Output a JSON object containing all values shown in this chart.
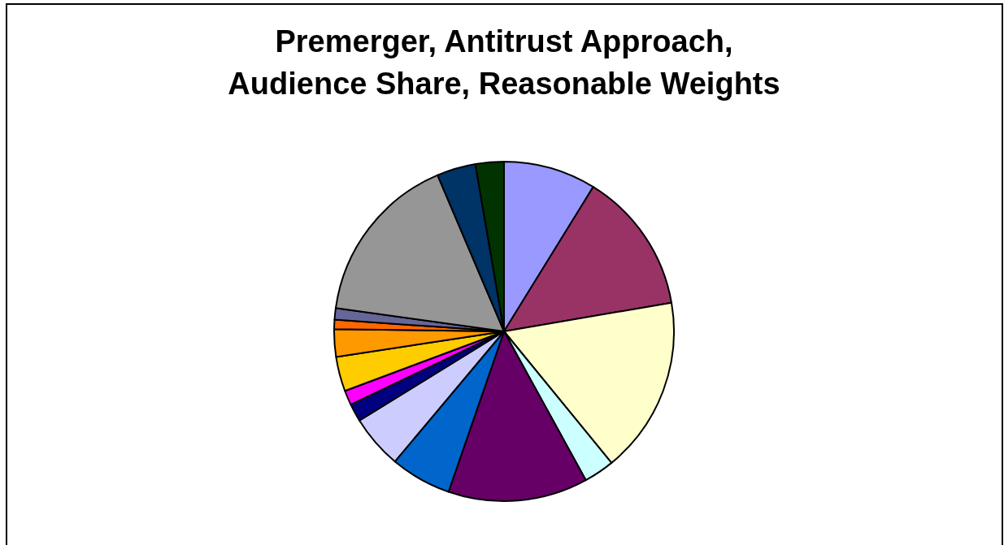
{
  "chart_data": {
    "type": "pie",
    "title": "Premerger, Antitrust Approach,\nAudience Share, Reasonable Weights",
    "categories": [
      null,
      null,
      null,
      null,
      null,
      null,
      null,
      null,
      null,
      null,
      null,
      null,
      null,
      null,
      null,
      null
    ],
    "values": [
      8.8,
      13.5,
      16.8,
      2.9,
      13.3,
      5.8,
      5.1,
      1.7,
      1.4,
      3.3,
      2.6,
      0.9,
      1.1,
      16.4,
      3.7,
      2.7
    ],
    "colors": [
      "#9999ff",
      "#993366",
      "#ffffcc",
      "#ccffff",
      "#660066",
      "#0066cc",
      "#ccccff",
      "#000080",
      "#ff00ff",
      "#ffcc00",
      "#ff9900",
      "#ff6600",
      "#666699",
      "#969696",
      "#003366",
      "#003300"
    ]
  }
}
